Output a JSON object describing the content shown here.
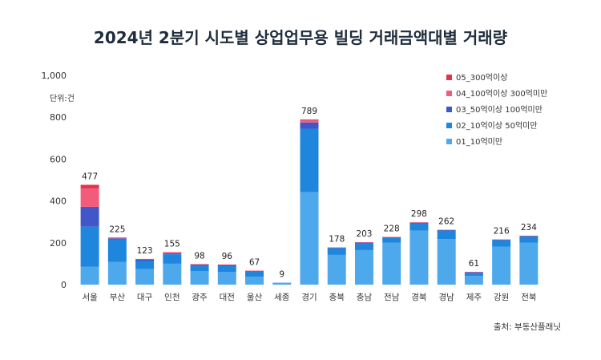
{
  "chart_data": {
    "type": "bar",
    "stacked": true,
    "title": "2024년 2분기 시도별 상업업무용 빌딩 거래금액대별 거래량",
    "unit_label": "단위:건",
    "source": "출처: 부동산플래닛",
    "ylim": [
      0,
      1000
    ],
    "yticks": [
      0,
      200,
      400,
      600,
      800,
      1000
    ],
    "ytick_labels": [
      "0",
      "200",
      "400",
      "600",
      "800",
      "1,000"
    ],
    "grid": false,
    "legend_position": "top-right",
    "categories": [
      "서울",
      "부산",
      "대구",
      "인천",
      "광주",
      "대전",
      "울산",
      "세종",
      "경기",
      "충북",
      "충남",
      "전남",
      "경북",
      "경남",
      "제주",
      "강원",
      "전북"
    ],
    "totals": [
      477,
      225,
      123,
      155,
      98,
      96,
      67,
      9,
      789,
      178,
      203,
      228,
      298,
      262,
      61,
      216,
      234
    ],
    "series": [
      {
        "name": "01_10억미만",
        "color": "#4ea8ec",
        "values": [
          85,
          108,
          75,
          100,
          65,
          60,
          38,
          7,
          442,
          142,
          165,
          200,
          258,
          218,
          42,
          182,
          200
        ]
      },
      {
        "name": "02_10억이상 50억미만",
        "color": "#1f86de",
        "values": [
          192,
          107,
          38,
          45,
          25,
          30,
          25,
          2,
          303,
          33,
          35,
          26,
          35,
          42,
          14,
          31,
          32
        ]
      },
      {
        "name": "03_50억이상 100억미만",
        "color": "#4056c9",
        "values": [
          95,
          6,
          6,
          5,
          5,
          4,
          3,
          0,
          30,
          2,
          2,
          1,
          4,
          1,
          4,
          2,
          1
        ]
      },
      {
        "name": "04_100억이상 300억미만",
        "color": "#f25c7a",
        "values": [
          88,
          3,
          3,
          4,
          2,
          1,
          1,
          0,
          10,
          1,
          1,
          1,
          1,
          1,
          1,
          1,
          1
        ]
      },
      {
        "name": "05_300억이상",
        "color": "#e0334f",
        "values": [
          17,
          1,
          1,
          1,
          1,
          1,
          0,
          0,
          4,
          0,
          0,
          0,
          0,
          0,
          0,
          0,
          0
        ]
      }
    ]
  }
}
